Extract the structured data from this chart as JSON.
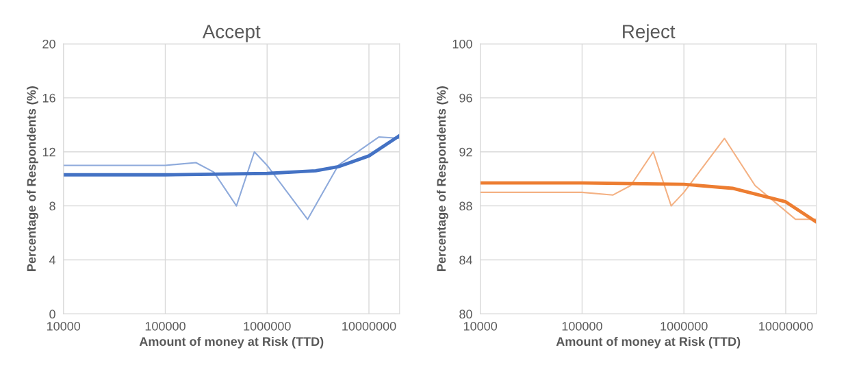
{
  "chart_data": [
    {
      "type": "line",
      "title": "Accept",
      "xlabel": "Amount of money at Risk (TTD)",
      "ylabel": "Percentage of Respondents (%)",
      "log": "x",
      "grid": true,
      "xlim": [
        10000,
        20000000
      ],
      "xticks": [
        10000,
        100000,
        1000000,
        10000000
      ],
      "ylim": [
        0,
        20
      ],
      "yticks": [
        0,
        4,
        8,
        12,
        16,
        20
      ],
      "series": [
        {
          "color": "#8eaadb",
          "x": [
            10000,
            100000,
            200000,
            300000,
            500000,
            750000,
            1000000,
            2500000,
            5000000,
            12500000,
            20000000
          ],
          "values": [
            11,
            11,
            11.2,
            10.5,
            8,
            12,
            11,
            7,
            11,
            13.1,
            13
          ]
        },
        {
          "color": "#4472c4",
          "x": [
            10000,
            100000,
            1000000,
            3000000,
            5000000,
            10000000,
            20000000
          ],
          "values": [
            10.3,
            10.3,
            10.4,
            10.6,
            10.9,
            11.7,
            13.2
          ]
        }
      ]
    },
    {
      "type": "line",
      "title": "Reject",
      "xlabel": "Amount of money at Risk (TTD)",
      "ylabel": "Percentage of Respondents (%)",
      "log": "x",
      "grid": true,
      "xlim": [
        10000,
        20000000
      ],
      "xticks": [
        10000,
        100000,
        1000000,
        10000000
      ],
      "ylim": [
        80,
        100
      ],
      "yticks": [
        80,
        84,
        88,
        92,
        96,
        100
      ],
      "series": [
        {
          "color": "#f4b183",
          "x": [
            10000,
            100000,
            200000,
            300000,
            500000,
            750000,
            1000000,
            2500000,
            5000000,
            12500000,
            20000000
          ],
          "values": [
            89,
            89,
            88.8,
            89.5,
            92,
            88,
            89,
            93,
            89.5,
            87,
            87
          ]
        },
        {
          "color": "#ed7d31",
          "x": [
            10000,
            100000,
            1000000,
            3000000,
            10000000,
            20000000
          ],
          "values": [
            89.7,
            89.7,
            89.6,
            89.3,
            88.3,
            86.8
          ]
        }
      ]
    }
  ]
}
